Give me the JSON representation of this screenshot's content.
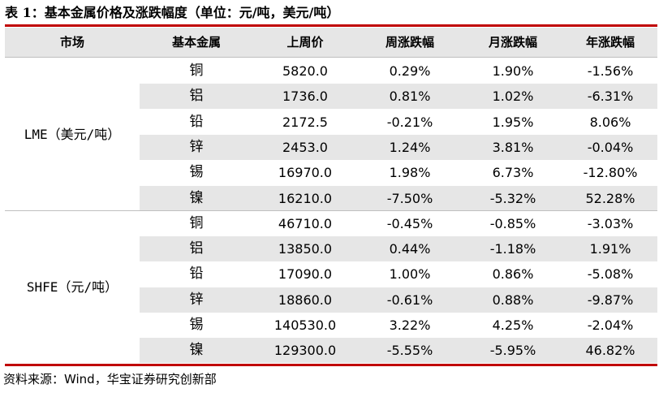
{
  "title": "表 1：基本金属价格及涨跌幅度（单位：元/吨，美元/吨）",
  "headers": [
    "市场",
    "基本金属",
    "上周价",
    "周涨跌幅",
    "月涨跌幅",
    "年涨跌幅"
  ],
  "groups": [
    {
      "market": "LME（美元/吨）",
      "rows": [
        {
          "metal": "铜",
          "price": "5820.0",
          "week": "0.29%",
          "month": "1.90%",
          "year": "-1.56%"
        },
        {
          "metal": "铝",
          "price": "1736.0",
          "week": "0.81%",
          "month": "1.02%",
          "year": "-6.31%"
        },
        {
          "metal": "铅",
          "price": "2172.5",
          "week": "-0.21%",
          "month": "1.95%",
          "year": "8.06%"
        },
        {
          "metal": "锌",
          "price": "2453.0",
          "week": "1.24%",
          "month": "3.81%",
          "year": "-0.04%"
        },
        {
          "metal": "锡",
          "price": "16970.0",
          "week": "1.98%",
          "month": "6.73%",
          "year": "-12.80%"
        },
        {
          "metal": "镍",
          "price": "16210.0",
          "week": "-7.50%",
          "month": "-5.32%",
          "year": "52.28%"
        }
      ]
    },
    {
      "market": "SHFE（元/吨）",
      "rows": [
        {
          "metal": "铜",
          "price": "46710.0",
          "week": "-0.45%",
          "month": "-0.85%",
          "year": "-3.03%"
        },
        {
          "metal": "铝",
          "price": "13850.0",
          "week": "0.44%",
          "month": "-1.18%",
          "year": "1.91%"
        },
        {
          "metal": "铅",
          "price": "17090.0",
          "week": "1.00%",
          "month": "0.86%",
          "year": "-5.08%"
        },
        {
          "metal": "锌",
          "price": "18860.0",
          "week": "-0.61%",
          "month": "0.88%",
          "year": "-9.87%"
        },
        {
          "metal": "锡",
          "price": "140530.0",
          "week": "3.22%",
          "month": "4.25%",
          "year": "-2.04%"
        },
        {
          "metal": "镍",
          "price": "129300.0",
          "week": "-5.55%",
          "month": "-5.95%",
          "year": "46.82%"
        }
      ]
    }
  ],
  "source": "资料来源：Wind，华宝证券研究创新部",
  "colors": {
    "rule": "#c00000",
    "shade": "#e6e6e6"
  }
}
